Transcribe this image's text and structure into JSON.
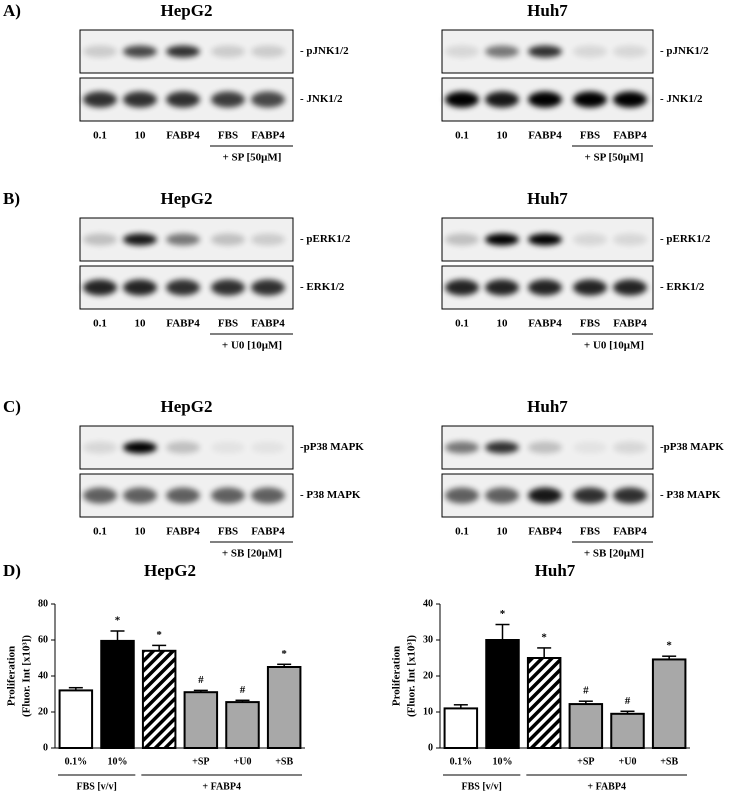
{
  "panels": [
    {
      "letter": "A)",
      "blots": [
        {
          "cell": "HepG2",
          "bands": [
            "- pJNK1/2",
            "- JNK1/2"
          ],
          "lanes": [
            "0.1",
            "10",
            "FABP4",
            "FBS",
            "FABP4"
          ],
          "treatment": "+ SP [50μM]"
        },
        {
          "cell": "Huh7",
          "bands": [
            "- pJNK1/2",
            "- JNK1/2"
          ],
          "lanes": [
            "0.1",
            "10",
            "FABP4",
            "FBS",
            "FABP4"
          ],
          "treatment": "+ SP [50μM]"
        }
      ]
    },
    {
      "letter": "B)",
      "blots": [
        {
          "cell": "HepG2",
          "bands": [
            "- pERK1/2",
            "- ERK1/2"
          ],
          "lanes": [
            "0.1",
            "10",
            "FABP4",
            "FBS",
            "FABP4"
          ],
          "treatment": "+ U0 [10μM]"
        },
        {
          "cell": "Huh7",
          "bands": [
            "- pERK1/2",
            "- ERK1/2"
          ],
          "lanes": [
            "0.1",
            "10",
            "FABP4",
            "FBS",
            "FABP4"
          ],
          "treatment": "+ U0 [10μM]"
        }
      ]
    },
    {
      "letter": "C)",
      "blots": [
        {
          "cell": "HepG2",
          "bands": [
            "-pP38 MAPK",
            "- P38 MAPK"
          ],
          "lanes": [
            "0.1",
            "10",
            "FABP4",
            "FBS",
            "FABP4"
          ],
          "treatment": "+ SB [20μM]"
        },
        {
          "cell": "Huh7",
          "bands": [
            "-pP38 MAPK",
            "- P38 MAPK"
          ],
          "lanes": [
            "0.1",
            "10",
            "FABP4",
            "FBS",
            "FABP4"
          ],
          "treatment": "+ SB [20μM]"
        }
      ]
    }
  ],
  "panel_d": {
    "letter": "D)"
  },
  "chart_data": [
    {
      "type": "bar",
      "title": "HepG2",
      "ylabel": [
        "Proliferation",
        "(Fluor. Int [x10³])"
      ],
      "categories": [
        "0.1%",
        "10%",
        null,
        "+SP",
        "+U0",
        "+SB"
      ],
      "values": [
        32,
        59.5,
        54,
        31,
        25.5,
        45
      ],
      "errors": [
        1.5,
        5.5,
        3,
        1,
        1,
        1.5
      ],
      "annotations": [
        null,
        "*",
        "*",
        "#",
        "#",
        "*"
      ],
      "colors": [
        "#ffffff",
        "#000000",
        "hatch",
        "#a8a8a8",
        "#a8a8a8",
        "#a8a8a8"
      ],
      "groups": [
        "FBS [v/v]",
        "+ FABP4"
      ],
      "ylim": [
        0,
        80
      ],
      "yticks": [
        0,
        20,
        40,
        60,
        80
      ]
    },
    {
      "type": "bar",
      "title": "Huh7",
      "ylabel": [
        "Proliferation",
        "(Fluor. Int [x10³])"
      ],
      "categories": [
        "0.1%",
        "10%",
        null,
        "+SP",
        "+U0",
        "+SB"
      ],
      "values": [
        11,
        30,
        25,
        12.2,
        9.5,
        24.6
      ],
      "errors": [
        1,
        4.3,
        2.8,
        0.8,
        0.7,
        0.9
      ],
      "annotations": [
        null,
        "*",
        "*",
        "#",
        "#",
        "*"
      ],
      "colors": [
        "#ffffff",
        "#000000",
        "hatch",
        "#a8a8a8",
        "#a8a8a8",
        "#a8a8a8"
      ],
      "groups": [
        "FBS [v/v]",
        "+ FABP4"
      ],
      "ylim": [
        0,
        40
      ],
      "yticks": [
        0,
        10,
        20,
        30,
        40
      ]
    }
  ]
}
